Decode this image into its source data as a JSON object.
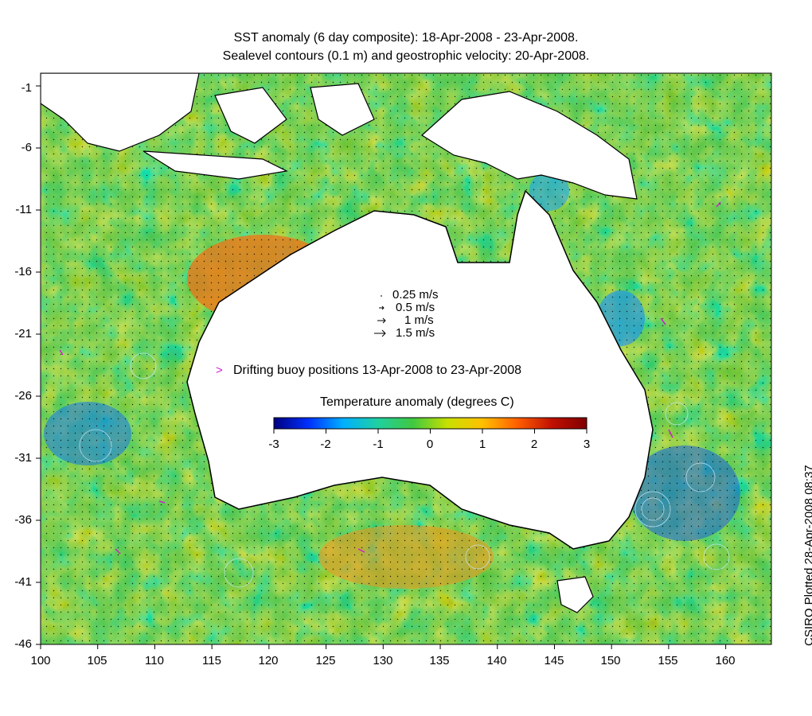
{
  "title": {
    "line1": "SST anomaly (6 day composite): 18-Apr-2008 - 23-Apr-2008.",
    "line2": "Sealevel contours (0.1 m) and geostrophic velocity: 20-Apr-2008."
  },
  "credit": "CSIRO Plotted 28-Apr-2008 08:37",
  "map": {
    "lon_range": [
      100,
      164
    ],
    "lat_range": [
      -46,
      0
    ],
    "x_ticks": [
      "100",
      "105",
      "110",
      "115",
      "120",
      "125",
      "130",
      "135",
      "140",
      "145",
      "150",
      "155",
      "160"
    ],
    "y_ticks": [
      "-1",
      "-6",
      "-11",
      "-16",
      "-21",
      "-26",
      "-31",
      "-36",
      "-41",
      "-46"
    ]
  },
  "velocity_legend": [
    "0.25 m/s",
    "0.5 m/s",
    "1 m/s",
    "1.5 m/s"
  ],
  "buoy_legend": "Drifting buoy positions 13-Apr-2008 to 23-Apr-2008",
  "colorbar": {
    "title": "Temperature anomaly (degrees C)",
    "min": -3,
    "max": 3,
    "ticks": [
      "-3",
      "-2",
      "-1",
      "0",
      "1",
      "2",
      "3"
    ],
    "colors": [
      "#00007f",
      "#0030ff",
      "#00b0ff",
      "#20d0a0",
      "#40c840",
      "#c8e000",
      "#ffc000",
      "#ff6000",
      "#c01000",
      "#800000"
    ]
  },
  "colors": {
    "land": "#ffffff",
    "coastline": "#000000",
    "contour": "#c8e8ff",
    "buoy": "#d020d0"
  }
}
